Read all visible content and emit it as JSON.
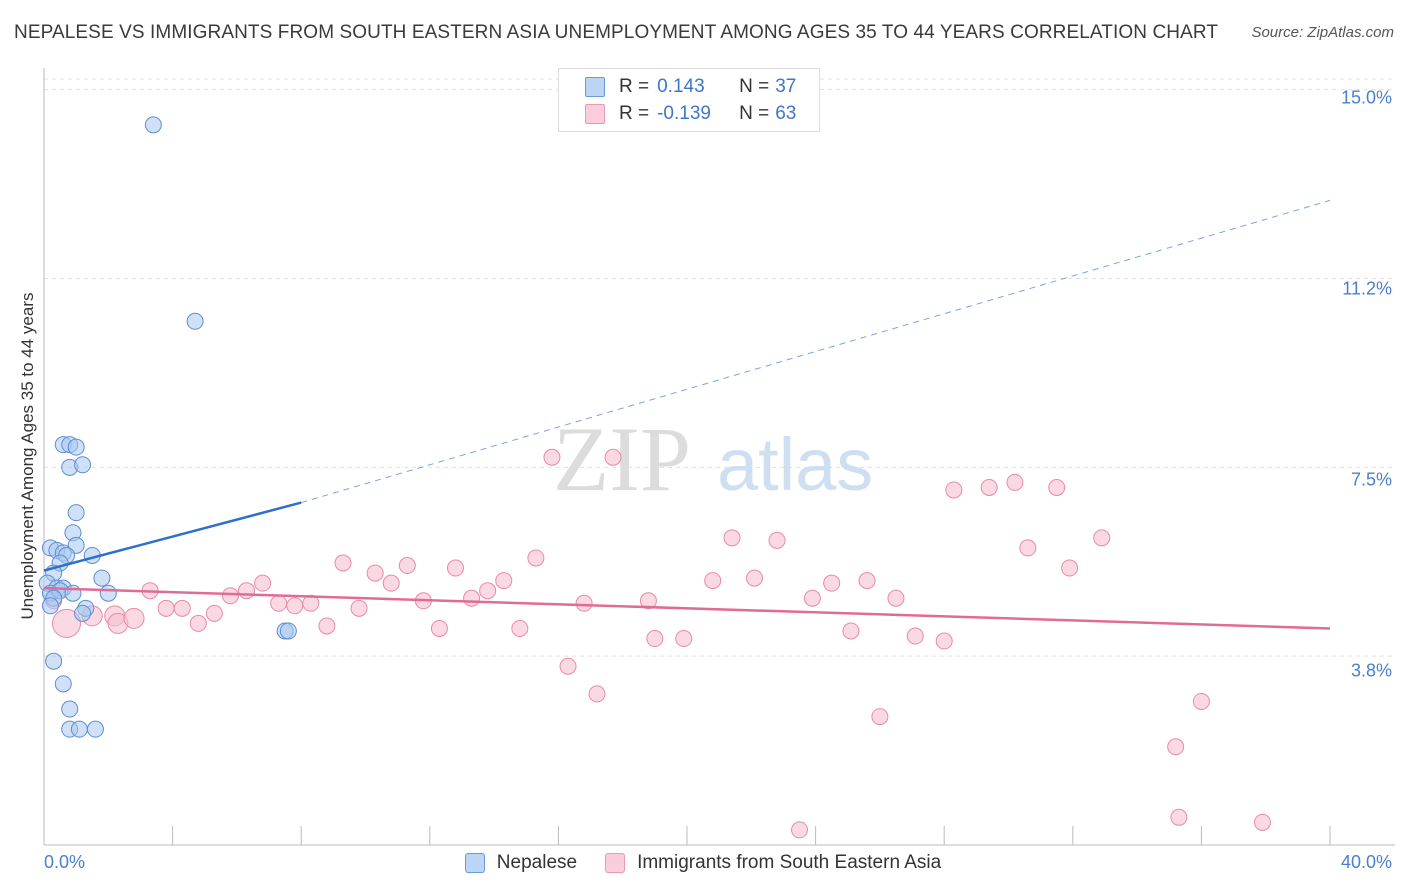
{
  "title": "NEPALESE VS IMMIGRANTS FROM SOUTH EASTERN ASIA UNEMPLOYMENT AMONG AGES 35 TO 44 YEARS CORRELATION CHART",
  "source": "Source: ZipAtlas.com",
  "watermark": {
    "zip": "ZIP",
    "atlas": "atlas"
  },
  "colors": {
    "blue_fill": "#a9c8f0",
    "blue_stroke": "#5b8fd6",
    "blue_line": "#2d6fd0",
    "pink_fill": "#f6bfd1",
    "pink_stroke": "#e88aa9",
    "pink_line": "#e06b95",
    "grid": "#e0e0e0",
    "tick_text": "#4a7fcf"
  },
  "legend": {
    "rows": [
      {
        "r_label": "R =",
        "r_value": "0.143",
        "n_label": "N =",
        "n_value": "37"
      },
      {
        "r_label": "R =",
        "r_value": "-0.139",
        "n_label": "N =",
        "n_value": "63"
      }
    ]
  },
  "bottom_legend": [
    "Nepalese",
    "Immigrants from South Eastern Asia"
  ],
  "axis": {
    "x_min_label": "0.0%",
    "x_max_label": "40.0%",
    "y_ticks": [
      "15.0%",
      "11.2%",
      "7.5%",
      "3.8%"
    ],
    "ylabel": "Unemployment Among Ages 35 to 44 years"
  },
  "chart_data": {
    "type": "scatter",
    "title": "NEPALESE VS IMMIGRANTS FROM SOUTH EASTERN ASIA UNEMPLOYMENT AMONG AGES 35 TO 44 YEARS CORRELATION CHART",
    "xlabel": "",
    "ylabel": "Unemployment Among Ages 35 to 44 years",
    "xlim": [
      0,
      40
    ],
    "ylim": [
      0,
      15.35
    ],
    "y_gridlines": [
      3.75,
      7.5,
      11.25,
      15.0
    ],
    "legend_position": "top-center",
    "series": [
      {
        "name": "Nepalese",
        "r": 0.143,
        "n": 37,
        "trend": {
          "x0": 0,
          "y0": 5.45,
          "x1": 8.0,
          "y1": 6.8,
          "dashed_to_x": 40,
          "dashed_to_y": 12.8
        },
        "points": [
          [
            3.4,
            14.3
          ],
          [
            4.7,
            10.4
          ],
          [
            0.6,
            7.95
          ],
          [
            0.8,
            7.95
          ],
          [
            1.0,
            7.9
          ],
          [
            0.8,
            7.5
          ],
          [
            1.2,
            7.55
          ],
          [
            1.0,
            6.6
          ],
          [
            0.9,
            6.2
          ],
          [
            0.2,
            5.9
          ],
          [
            0.4,
            5.85
          ],
          [
            1.0,
            5.95
          ],
          [
            0.6,
            5.8
          ],
          [
            0.7,
            5.75
          ],
          [
            1.5,
            5.75
          ],
          [
            0.5,
            5.6
          ],
          [
            0.3,
            5.4
          ],
          [
            1.8,
            5.3
          ],
          [
            0.1,
            5.2
          ],
          [
            0.4,
            5.1
          ],
          [
            0.6,
            5.1
          ],
          [
            0.2,
            5.0
          ],
          [
            0.5,
            5.05
          ],
          [
            0.3,
            4.9
          ],
          [
            2.0,
            5.0
          ],
          [
            1.3,
            4.7
          ],
          [
            0.2,
            4.75
          ],
          [
            7.5,
            4.25
          ],
          [
            7.6,
            4.25
          ],
          [
            0.3,
            3.65
          ],
          [
            0.6,
            3.2
          ],
          [
            0.8,
            2.7
          ],
          [
            0.8,
            2.3
          ],
          [
            1.1,
            2.3
          ],
          [
            1.6,
            2.3
          ],
          [
            0.9,
            5.0
          ],
          [
            1.2,
            4.6
          ]
        ]
      },
      {
        "name": "Immigrants from South Eastern Asia",
        "r": -0.139,
        "n": 63,
        "trend": {
          "x0": 0,
          "y0": 5.1,
          "x1": 40,
          "y1": 4.3
        },
        "points": [
          [
            0.7,
            4.4
          ],
          [
            1.5,
            4.55
          ],
          [
            2.2,
            4.55
          ],
          [
            2.3,
            4.4
          ],
          [
            2.8,
            4.5
          ],
          [
            3.3,
            5.05
          ],
          [
            3.8,
            4.7
          ],
          [
            4.3,
            4.7
          ],
          [
            4.8,
            4.4
          ],
          [
            5.3,
            4.6
          ],
          [
            5.8,
            4.95
          ],
          [
            6.3,
            5.05
          ],
          [
            6.8,
            5.2
          ],
          [
            7.3,
            4.8
          ],
          [
            7.8,
            4.75
          ],
          [
            8.3,
            4.8
          ],
          [
            8.8,
            4.35
          ],
          [
            9.3,
            5.6
          ],
          [
            9.8,
            4.7
          ],
          [
            10.3,
            5.4
          ],
          [
            10.8,
            5.2
          ],
          [
            11.3,
            5.55
          ],
          [
            11.8,
            4.85
          ],
          [
            12.3,
            4.3
          ],
          [
            12.8,
            5.5
          ],
          [
            13.3,
            4.9
          ],
          [
            13.8,
            5.05
          ],
          [
            14.3,
            5.25
          ],
          [
            14.8,
            4.3
          ],
          [
            15.3,
            5.7
          ],
          [
            15.8,
            7.7
          ],
          [
            16.3,
            3.55
          ],
          [
            16.8,
            4.8
          ],
          [
            17.2,
            3.0
          ],
          [
            17.7,
            7.7
          ],
          [
            18.8,
            4.85
          ],
          [
            19.0,
            4.1
          ],
          [
            19.9,
            4.1
          ],
          [
            20.8,
            5.25
          ],
          [
            21.4,
            6.1
          ],
          [
            22.1,
            5.3
          ],
          [
            22.8,
            6.05
          ],
          [
            23.5,
            0.3
          ],
          [
            23.9,
            4.9
          ],
          [
            24.5,
            5.2
          ],
          [
            25.1,
            4.25
          ],
          [
            25.6,
            5.25
          ],
          [
            26.0,
            2.55
          ],
          [
            26.5,
            4.9
          ],
          [
            27.1,
            4.15
          ],
          [
            28.0,
            4.05
          ],
          [
            28.3,
            7.05
          ],
          [
            29.4,
            7.1
          ],
          [
            30.2,
            7.2
          ],
          [
            30.6,
            5.9
          ],
          [
            31.5,
            7.1
          ],
          [
            31.9,
            5.5
          ],
          [
            32.9,
            6.1
          ],
          [
            35.2,
            1.95
          ],
          [
            35.3,
            0.55
          ],
          [
            36.0,
            2.85
          ],
          [
            37.9,
            0.45
          ],
          [
            0.3,
            4.85
          ]
        ]
      }
    ]
  }
}
